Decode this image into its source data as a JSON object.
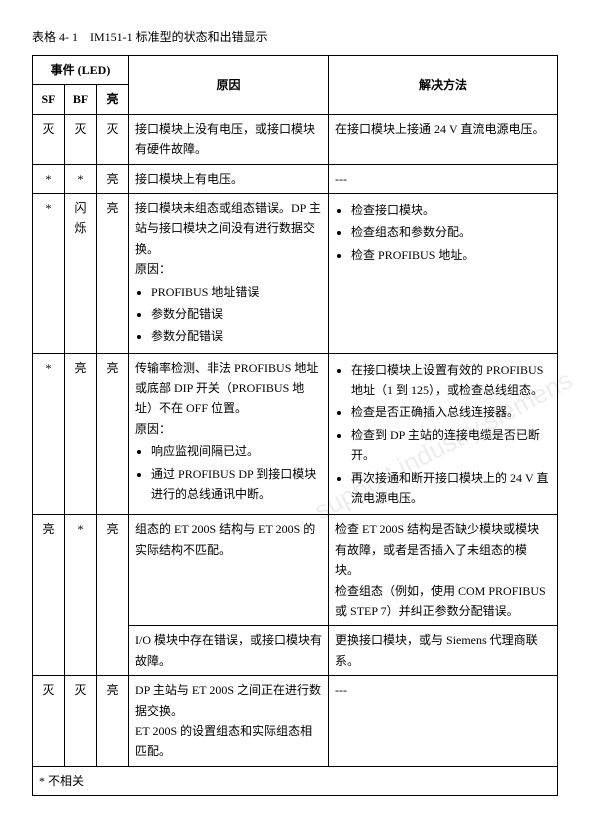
{
  "title_prefix": "表格 4- 1",
  "title_text": "IM151-1 标准型的状态和出错显示",
  "header": {
    "event": "事件 (LED)",
    "cause": "原因",
    "solution": "解决方法",
    "sf": "SF",
    "bf": "BF",
    "on": "亮"
  },
  "rows": [
    {
      "sf": "灭",
      "bf": "灭",
      "on": "灭",
      "cause_text": "接口模块上没有电压，或接口模块有硬件故障。",
      "sol_text": "在接口模块上接通 24 V 直流电源电压。"
    },
    {
      "sf": "*",
      "bf": "*",
      "on": "亮",
      "cause_text": "接口模块上有电压。",
      "sol_text": "---"
    },
    {
      "sf": "*",
      "bf": "闪烁",
      "on": "亮",
      "cause_lead": "接口模块未组态或组态错误。DP 主站与接口模块之间没有进行数据交换。",
      "cause_reason_label": "原因：",
      "cause_items": [
        "PROFIBUS 地址错误",
        "参数分配错误",
        "参数分配错误"
      ],
      "sol_items": [
        "检查接口模块。",
        "检查组态和参数分配。",
        "检查 PROFIBUS 地址。"
      ]
    },
    {
      "sf": "*",
      "bf": "亮",
      "on": "亮",
      "cause_lead": "传输率检测、非法 PROFIBUS 地址或底部 DIP 开关（PROFIBUS 地址）不在 OFF 位置。",
      "cause_reason_label": "原因：",
      "cause_items": [
        "响应监视间隔已过。",
        "通过 PROFIBUS DP 到接口模块进行的总线通讯中断。"
      ],
      "sol_items": [
        "在接口模块上设置有效的 PROFIBUS 地址（1 到 125），或检查总线组态。",
        "检查是否正确插入总线连接器。",
        "检查到 DP 主站的连接电缆是否已断开。",
        "再次接通和断开接口模块上的 24 V 直流电源电压。"
      ]
    },
    {
      "sf": "亮",
      "bf": "*",
      "on": "亮",
      "cause_text": "组态的 ET 200S 结构与 ET 200S 的实际结构不匹配。",
      "sol_p1": "检查 ET 200S 结构是否缺少模块或模块有故障，或者是否插入了未组态的模块。",
      "sol_p2": "检查组态（例如，使用 COM PROFIBUS 或 STEP 7）并纠正参数分配错误。"
    },
    {
      "cause_text": "I/O 模块中存在错误，或接口模块有故障。",
      "sol_text": "更换接口模块，或与 Siemens 代理商联系。"
    },
    {
      "sf": "灭",
      "bf": "灭",
      "on": "亮",
      "cause_p1": "DP 主站与 ET 200S 之间正在进行数据交换。",
      "cause_p2": "ET 200S 的设置组态和实际组态相匹配。",
      "sol_text": "---"
    }
  ],
  "footnote": "* 不相关",
  "watermark": "support.industry.siemens"
}
